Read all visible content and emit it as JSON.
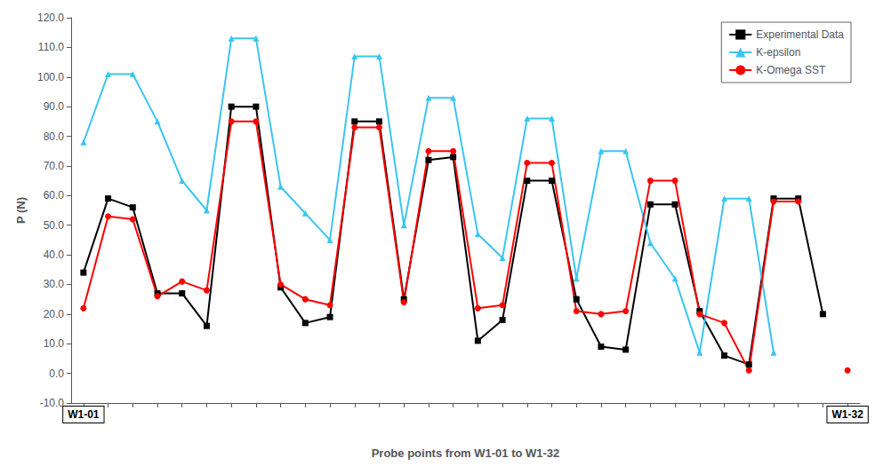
{
  "chart_data": {
    "type": "line",
    "ylabel": "P (N)",
    "xlabel": "Probe points from W1-01 to W1-32",
    "x": [
      1,
      2,
      3,
      4,
      5,
      6,
      7,
      8,
      9,
      10,
      11,
      12,
      13,
      14,
      15,
      16,
      17,
      18,
      19,
      20,
      21,
      22,
      23,
      24,
      25,
      26,
      27,
      28,
      29,
      30,
      31,
      32
    ],
    "series": [
      {
        "name": "Experimental Data",
        "color": "black",
        "marker": "square",
        "values": [
          34,
          59,
          56,
          27,
          27,
          16,
          90,
          90,
          29,
          17,
          19,
          85,
          85,
          25,
          72,
          73,
          11,
          18,
          65,
          65,
          25,
          9,
          8,
          57,
          57,
          21,
          6,
          3,
          59,
          59,
          20,
          null
        ]
      },
      {
        "name": "K-epsilon",
        "color": "#3BC5F0",
        "marker": "triangle",
        "values": [
          78,
          101,
          101,
          85,
          65,
          55,
          113,
          113,
          63,
          54,
          45,
          107,
          107,
          50,
          93,
          93,
          47,
          39,
          86,
          86,
          32,
          75,
          75,
          44,
          32,
          7,
          59,
          59,
          7,
          null,
          null,
          null
        ]
      },
      {
        "name": "K-Omega SST",
        "color": "red",
        "marker": "circle",
        "values": [
          22,
          53,
          52,
          26,
          31,
          28,
          85,
          85,
          30,
          25,
          23,
          83,
          83,
          24,
          75,
          75,
          22,
          23,
          71,
          71,
          21,
          20,
          21,
          65,
          65,
          20,
          17,
          1,
          58,
          58,
          null,
          1
        ]
      }
    ],
    "xlim": [
      0.5,
      32.5
    ],
    "xticks": [
      1,
      2,
      3,
      4,
      5,
      6,
      7,
      8,
      9,
      10,
      11,
      12,
      13,
      14,
      15,
      16,
      17,
      18,
      19,
      20,
      21,
      22,
      23,
      24,
      25,
      26,
      27,
      28,
      29,
      30,
      31,
      32
    ],
    "ylim": [
      -10,
      120
    ],
    "yticks": [
      {
        "value": -10,
        "label": "-10.0"
      },
      {
        "value": 0,
        "label": "0.0"
      },
      {
        "value": 10,
        "label": "10.0"
      },
      {
        "value": 20,
        "label": "20.0"
      },
      {
        "value": 30,
        "label": "30.0"
      },
      {
        "value": 40,
        "label": "40.0"
      },
      {
        "value": 50,
        "label": "50.0"
      },
      {
        "value": 60,
        "label": "60.0"
      },
      {
        "value": 70,
        "label": "70.0"
      },
      {
        "value": 80,
        "label": "80.0"
      },
      {
        "value": 90,
        "label": "90.0"
      },
      {
        "value": 100,
        "label": "100.0"
      },
      {
        "value": 110,
        "label": "110.0"
      },
      {
        "value": 120,
        "label": "120.0"
      }
    ],
    "annotations": [
      {
        "x": 1,
        "text": "W1-01"
      },
      {
        "x": 32,
        "text": "W1-32"
      }
    ],
    "grid": false,
    "legend": "upper right",
    "tick_labels": "y"
  }
}
